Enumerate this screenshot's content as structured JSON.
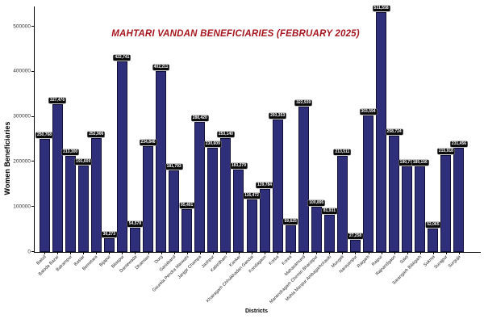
{
  "chart_data": {
    "type": "bar",
    "title": "MAHTARI VANDAN BENEFICIARIES (FEBRUARY 2025)",
    "title_color": "#A6171F",
    "xlabel": "Districts",
    "ylabel": "Women Beneficiaries",
    "ylim": [
      0,
      560000
    ],
    "yticks": [
      0,
      100000,
      200000,
      300000,
      400000,
      500000
    ],
    "grid": false,
    "legend": "none",
    "bar_color": "#2E2E7B",
    "bar_edge_color": "#101038",
    "value_label_bg": "#0B0B0B",
    "value_label_fg": "#FFFFFF",
    "categories": [
      "Balod",
      "Baloda Bazar",
      "Balrampur",
      "Bastar",
      "Bemetara",
      "Bijapur",
      "Bilaspur",
      "Dantewada",
      "Dhamtari",
      "Durg",
      "Gariaband",
      "Gaurela Pendra Marwahi",
      "Janjgir Champa",
      "Jashpur",
      "Kabirdham",
      "Kanker",
      "Khairagarh Chhuikhadan Gandai",
      "Kondagaon",
      "Korba",
      "Korea",
      "Mahasamund",
      "Manendragarh Chirmiri Bharatpur",
      "Mohla Manpur Ambagarhchauki",
      "Mungeli",
      "Narayanpur",
      "Raigarh",
      "Raipur",
      "Rajnandgaon",
      "Sakti",
      "Sarangarh Bilaigarh",
      "Sukma",
      "Surajpur",
      "Surguja"
    ],
    "values": [
      250768,
      327476,
      213300,
      191609,
      252906,
      30273,
      422741,
      54578,
      234846,
      402211,
      181793,
      95401,
      288420,
      230609,
      253140,
      183279,
      116472,
      139784,
      293353,
      59625,
      322939,
      100895,
      81931,
      213511,
      27258,
      303594,
      531558,
      258724,
      190777,
      189156,
      52065,
      215918,
      231456
    ]
  }
}
